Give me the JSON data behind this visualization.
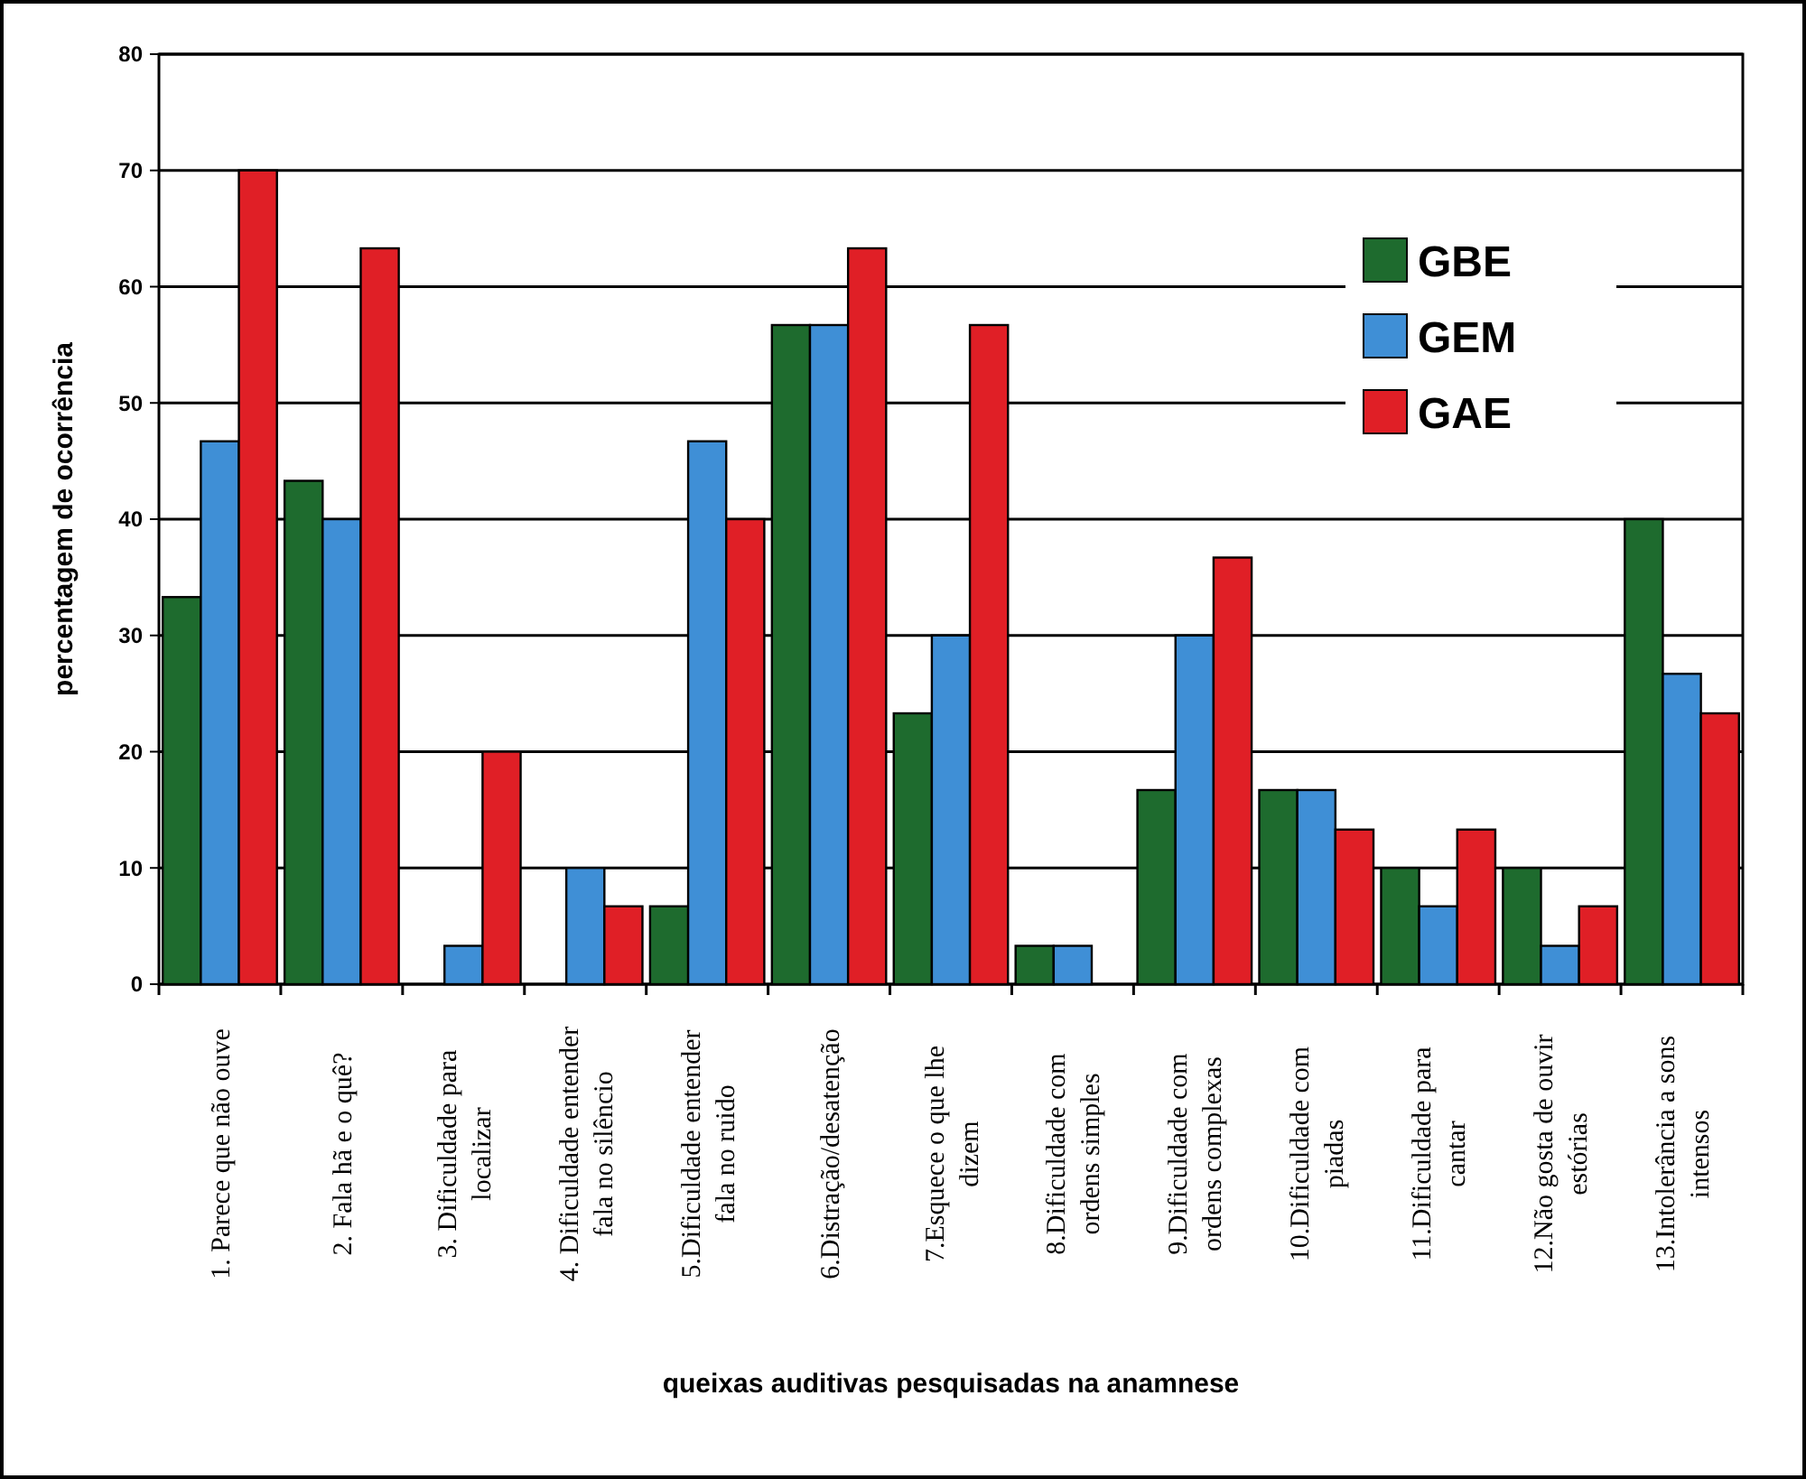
{
  "chart_data": {
    "type": "bar",
    "xlabel": "queixas auditivas pesquisadas na anamnese",
    "ylabel": "percentagem de ocorrência",
    "categories": [
      "1. Parece que não ouve",
      "2. Fala hã e o quê?",
      "3. Dificuldade para localizar",
      "4. Dificuldade entender fala no silêncio",
      "5.Dificuldade entender fala no ruido",
      "6.Distração/desatenção",
      "7.Esquece o que lhe dizem",
      "8.Dificuldade com ordens simples",
      "9.Dificuldade com ordens complexas",
      "10.Dificuldade  com piadas",
      "11.Dificuldade para cantar",
      "12.Não gosta de ouvir estórias",
      "13.Intolerância a sons intensos"
    ],
    "series": [
      {
        "name": "GBE",
        "color": "#1e6b2e",
        "values": [
          33.3,
          43.3,
          0,
          0,
          6.7,
          56.7,
          23.3,
          3.3,
          16.7,
          16.7,
          10,
          10,
          40
        ]
      },
      {
        "name": "GEM",
        "color": "#3f8fd6",
        "values": [
          46.7,
          40,
          3.3,
          10,
          46.7,
          56.7,
          30,
          3.3,
          30,
          16.7,
          6.7,
          3.3,
          26.7
        ]
      },
      {
        "name": "GAE",
        "color": "#e01f26",
        "values": [
          70,
          63.3,
          20,
          6.7,
          40,
          63.3,
          56.7,
          0,
          36.7,
          13.3,
          13.3,
          6.7,
          23.3
        ]
      }
    ],
    "ylim": [
      0,
      80
    ],
    "yticks": [
      0,
      10,
      20,
      30,
      40,
      50,
      60,
      70,
      80
    ],
    "grid": "y",
    "legend": "top right"
  }
}
